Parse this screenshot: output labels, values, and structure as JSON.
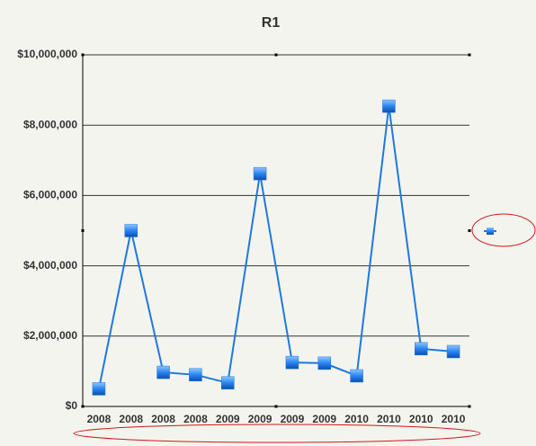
{
  "chart_data": {
    "type": "line",
    "title": "R1",
    "categories": [
      "2008",
      "2008",
      "2008",
      "2008",
      "2009",
      "2009",
      "2009",
      "2009",
      "2010",
      "2010",
      "2010",
      "2010"
    ],
    "series": [
      {
        "color": "#1f78e0",
        "values": [
          500000,
          5000000,
          970000,
          900000,
          670000,
          6620000,
          1250000,
          1230000,
          870000,
          8540000,
          1640000,
          1560000
        ]
      }
    ],
    "ylim": [
      0,
      10000000
    ],
    "yticks": [
      {
        "value": 0,
        "label": "$0"
      },
      {
        "value": 2000000,
        "label": "$2,000,000"
      },
      {
        "value": 4000000,
        "label": "$4,000,000"
      },
      {
        "value": 6000000,
        "label": "$6,000,000"
      },
      {
        "value": 8000000,
        "label": "$8,000,000"
      },
      {
        "value": 10000000,
        "label": "$10,000,000"
      }
    ],
    "grid": true
  }
}
